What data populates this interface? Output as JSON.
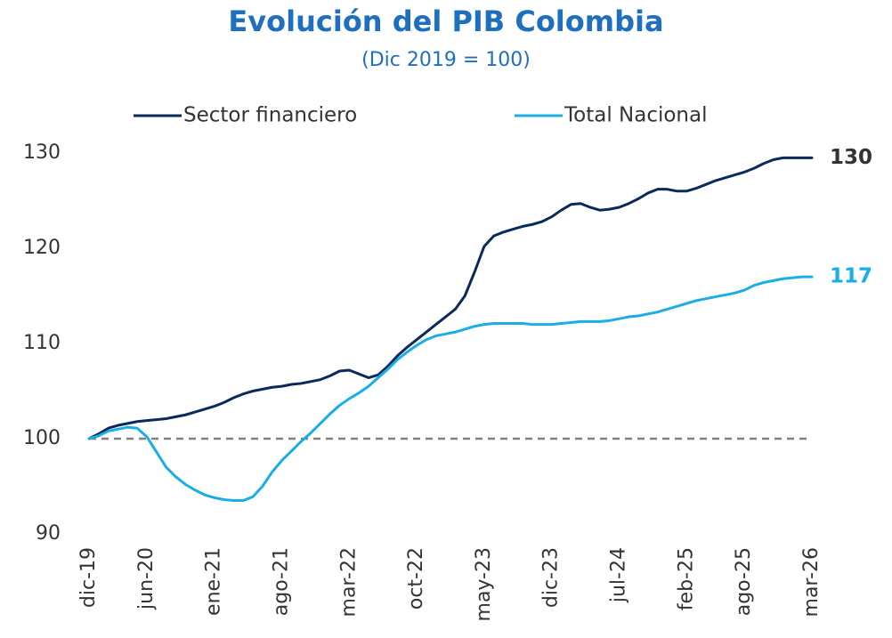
{
  "chart_data": {
    "type": "line",
    "title": "Evolución del PIB Colombia",
    "subtitle": "(Dic 2019 = 100)",
    "categories": [
      "dic-19",
      null,
      null,
      null,
      null,
      null,
      "jun-20",
      null,
      null,
      null,
      null,
      null,
      null,
      "ene-21",
      null,
      null,
      null,
      null,
      null,
      null,
      "ago-21",
      null,
      null,
      null,
      null,
      null,
      null,
      "mar-22",
      null,
      null,
      null,
      null,
      null,
      null,
      "oct-22",
      null,
      null,
      null,
      null,
      null,
      null,
      "may-23",
      null,
      null,
      null,
      null,
      null,
      null,
      "dic-23",
      null,
      null,
      null,
      null,
      null,
      null,
      "jul-24",
      null,
      null,
      null,
      null,
      null,
      null,
      "feb-25",
      null,
      null,
      null,
      null,
      null,
      "ago-25",
      null,
      null,
      null,
      null,
      null,
      null,
      "mar-26"
    ],
    "series": [
      {
        "name": "Sector financiero",
        "color": "#0b2a5b",
        "label_color": "#333333",
        "values": [
          100,
          100.5,
          101.1,
          101.4,
          101.6,
          101.8,
          101.9,
          102.0,
          102.1,
          102.3,
          102.5,
          102.8,
          103.1,
          103.4,
          103.8,
          104.3,
          104.7,
          105.0,
          105.2,
          105.4,
          105.5,
          105.7,
          105.8,
          106.0,
          106.2,
          106.6,
          107.1,
          107.2,
          106.8,
          106.4,
          106.7,
          107.6,
          108.7,
          109.6,
          110.4,
          111.2,
          112.0,
          112.8,
          113.6,
          115.0,
          117.5,
          120.2,
          121.3,
          121.7,
          122.0,
          122.3,
          122.5,
          122.8,
          123.3,
          124.0,
          124.6,
          124.7,
          124.3,
          124.0,
          124.1,
          124.3,
          124.7,
          125.2,
          125.8,
          126.2,
          126.2,
          126.0,
          126.0,
          126.3,
          126.7,
          127.1,
          127.4,
          127.7,
          128.0,
          128.4,
          128.9,
          129.3,
          129.5,
          129.5,
          129.5,
          129.5
        ],
        "value_labels": [
          null,
          null,
          null,
          null,
          null,
          null,
          null,
          null,
          null,
          null,
          null,
          null,
          null,
          null,
          null,
          null,
          null,
          null,
          null,
          null,
          null,
          null,
          null,
          null,
          null,
          null,
          null,
          null,
          null,
          null,
          null,
          null,
          null,
          null,
          null,
          null,
          null,
          null,
          null,
          null,
          null,
          null,
          null,
          null,
          null,
          null,
          null,
          null,
          null,
          null,
          null,
          null,
          null,
          null,
          null,
          null,
          null,
          null,
          null,
          null,
          null,
          null,
          null,
          null,
          null,
          null,
          null,
          null,
          null,
          null,
          null,
          null,
          null,
          null,
          null,
          "130"
        ]
      },
      {
        "name": "Total Nacional",
        "color": "#1aaee8",
        "label_color": "#1aaee8",
        "values": [
          100,
          100.3,
          100.8,
          101.0,
          101.2,
          101.1,
          100.2,
          98.6,
          97.0,
          96.0,
          95.2,
          94.6,
          94.1,
          93.8,
          93.6,
          93.5,
          93.5,
          93.9,
          95.0,
          96.5,
          97.7,
          98.7,
          99.7,
          100.6,
          101.6,
          102.6,
          103.5,
          104.2,
          104.8,
          105.5,
          106.4,
          107.3,
          108.3,
          109.1,
          109.8,
          110.4,
          110.8,
          111.0,
          111.2,
          111.5,
          111.8,
          112.0,
          112.1,
          112.1,
          112.1,
          112.1,
          112.0,
          112.0,
          112.0,
          112.1,
          112.2,
          112.3,
          112.3,
          112.3,
          112.4,
          112.6,
          112.8,
          112.9,
          113.1,
          113.3,
          113.6,
          113.9,
          114.2,
          114.5,
          114.7,
          114.9,
          115.1,
          115.3,
          115.6,
          116.1,
          116.4,
          116.6,
          116.8,
          116.9,
          117.0,
          117.0
        ],
        "value_labels": [
          null,
          null,
          null,
          null,
          null,
          null,
          null,
          null,
          null,
          null,
          null,
          null,
          null,
          null,
          null,
          null,
          null,
          null,
          null,
          null,
          null,
          null,
          null,
          null,
          null,
          null,
          null,
          null,
          null,
          null,
          null,
          null,
          null,
          null,
          null,
          null,
          null,
          null,
          null,
          null,
          null,
          null,
          null,
          null,
          null,
          null,
          null,
          null,
          null,
          null,
          null,
          null,
          null,
          null,
          null,
          null,
          null,
          null,
          null,
          null,
          null,
          null,
          null,
          null,
          null,
          null,
          null,
          null,
          null,
          null,
          null,
          null,
          null,
          null,
          null,
          "117"
        ]
      }
    ],
    "ylim": [
      90,
      130
    ],
    "yticks": [
      90,
      100,
      110,
      120,
      130
    ],
    "reference_line": 100,
    "legend": "top",
    "grid": false
  }
}
